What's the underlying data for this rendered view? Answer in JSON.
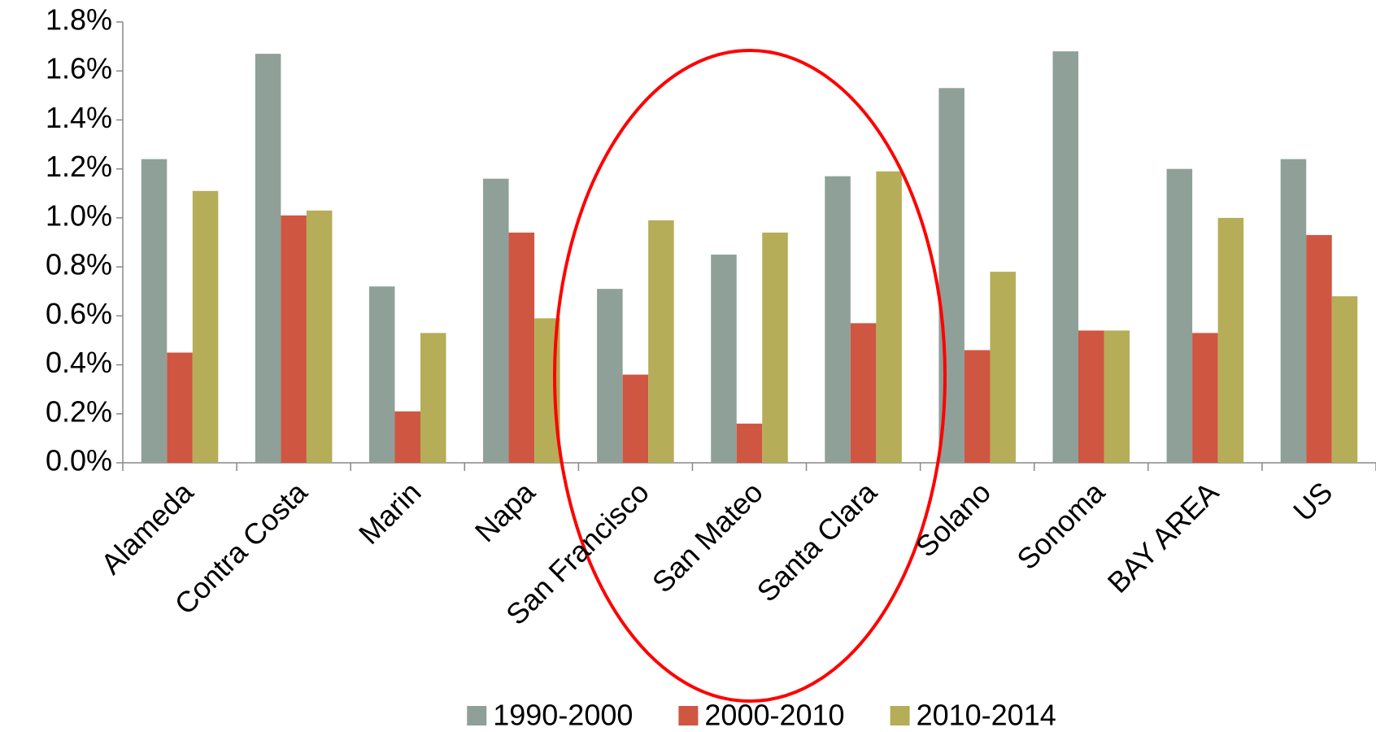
{
  "chart_data": {
    "type": "bar",
    "categories": [
      "Alameda",
      "Contra Costa",
      "Marin",
      "Napa",
      "San Francisco",
      "San Mateo",
      "Santa Clara",
      "Solano",
      "Sonoma",
      "BAY AREA",
      "US"
    ],
    "series": [
      {
        "name": "1990-2000",
        "color": "#8fa098",
        "values": [
          1.24,
          1.67,
          0.72,
          1.16,
          0.71,
          0.85,
          1.17,
          1.53,
          1.68,
          1.2,
          1.24
        ]
      },
      {
        "name": "2000-2010",
        "color": "#cf5641",
        "values": [
          0.45,
          1.01,
          0.21,
          0.94,
          0.36,
          0.16,
          0.57,
          0.46,
          0.54,
          0.53,
          0.93
        ]
      },
      {
        "name": "2010-2014",
        "color": "#b5ad58",
        "values": [
          1.11,
          1.03,
          0.53,
          0.59,
          0.99,
          0.94,
          1.19,
          0.78,
          0.54,
          1.0,
          0.68
        ]
      }
    ],
    "ylim": [
      0,
      1.8
    ],
    "yticks": [
      {
        "value": 0,
        "label": "0.0%"
      },
      {
        "value": 0.2,
        "label": "0.2%"
      },
      {
        "value": 0.4,
        "label": "0.4%"
      },
      {
        "value": 0.6,
        "label": "0.6%"
      },
      {
        "value": 0.8,
        "label": "0.8%"
      },
      {
        "value": 1.0,
        "label": "1.0%"
      },
      {
        "value": 1.2,
        "label": "1.2%"
      },
      {
        "value": 1.4,
        "label": "1.4%"
      },
      {
        "value": 1.6,
        "label": "1.6%"
      },
      {
        "value": 1.8,
        "label": "1.8%"
      }
    ],
    "grid": false,
    "legend": "bottom"
  }
}
